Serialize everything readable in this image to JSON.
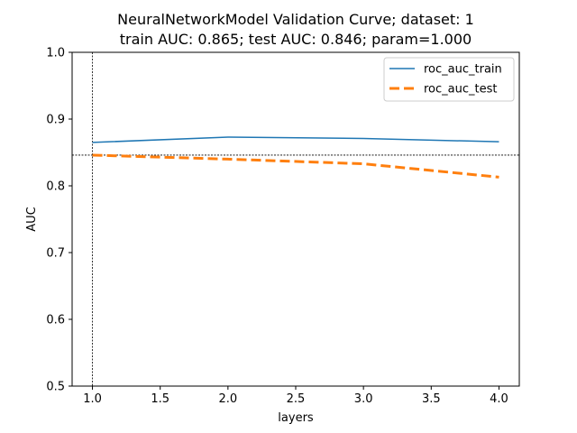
{
  "chart_data": {
    "type": "line",
    "title_line1": "NeuralNetworkModel Validation Curve; dataset: 1",
    "title_line2": "train AUC: 0.865; test AUC: 0.846; param=1.000",
    "xlabel": "layers",
    "ylabel": "AUC",
    "x": [
      1.0,
      2.0,
      3.0,
      4.0
    ],
    "xlim": [
      0.85,
      4.15
    ],
    "ylim": [
      0.5,
      1.0
    ],
    "xticks": [
      1.0,
      1.5,
      2.0,
      2.5,
      3.0,
      3.5,
      4.0
    ],
    "xtick_labels": [
      "1.0",
      "1.5",
      "2.0",
      "2.5",
      "3.0",
      "3.5",
      "4.0"
    ],
    "yticks": [
      0.5,
      0.6,
      0.7,
      0.8,
      0.9,
      1.0
    ],
    "ytick_labels": [
      "0.5",
      "0.6",
      "0.7",
      "0.8",
      "0.9",
      "1.0"
    ],
    "series": [
      {
        "name": "roc_auc_train",
        "values": [
          0.865,
          0.873,
          0.871,
          0.866
        ],
        "color": "#1f77b4",
        "style": "solid"
      },
      {
        "name": "roc_auc_test",
        "values": [
          0.846,
          0.84,
          0.833,
          0.813
        ],
        "color": "#ff7f0e",
        "style": "dashed"
      }
    ],
    "reference_lines": {
      "vertical_x": 1.0,
      "horizontal_y": 0.846
    },
    "legend_position": "top-right",
    "grid": false
  }
}
